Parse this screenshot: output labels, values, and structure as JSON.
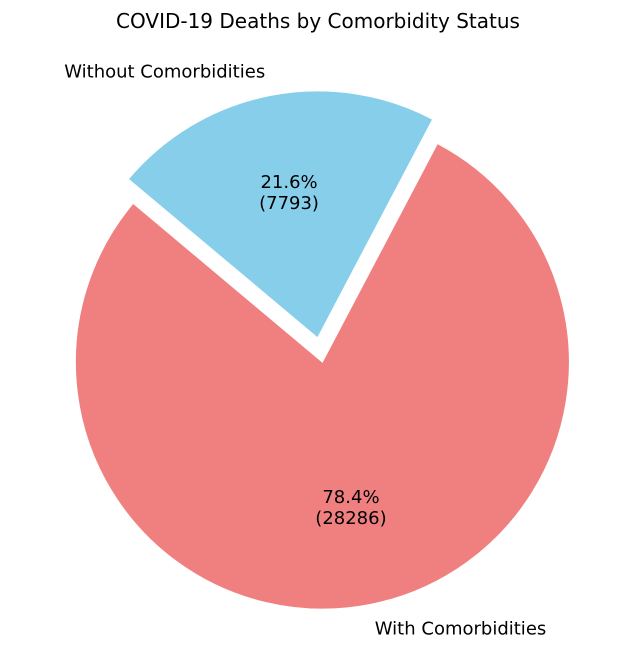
{
  "chart_data": {
    "type": "pie",
    "title": "COVID-19 Deaths by Comorbidity Status",
    "start_angle_deg": 140,
    "direction": "counterclockwise",
    "slices": [
      {
        "label": "With Comorbidities",
        "value": 28286,
        "percent_text": "78.4%",
        "value_text": "(28286)",
        "color": "#F08080",
        "exploded": true
      },
      {
        "label": "Without Comorbidities",
        "value": 7793,
        "percent_text": "21.6%",
        "value_text": "(7793)",
        "color": "#87CEEB",
        "exploded": true
      }
    ]
  }
}
